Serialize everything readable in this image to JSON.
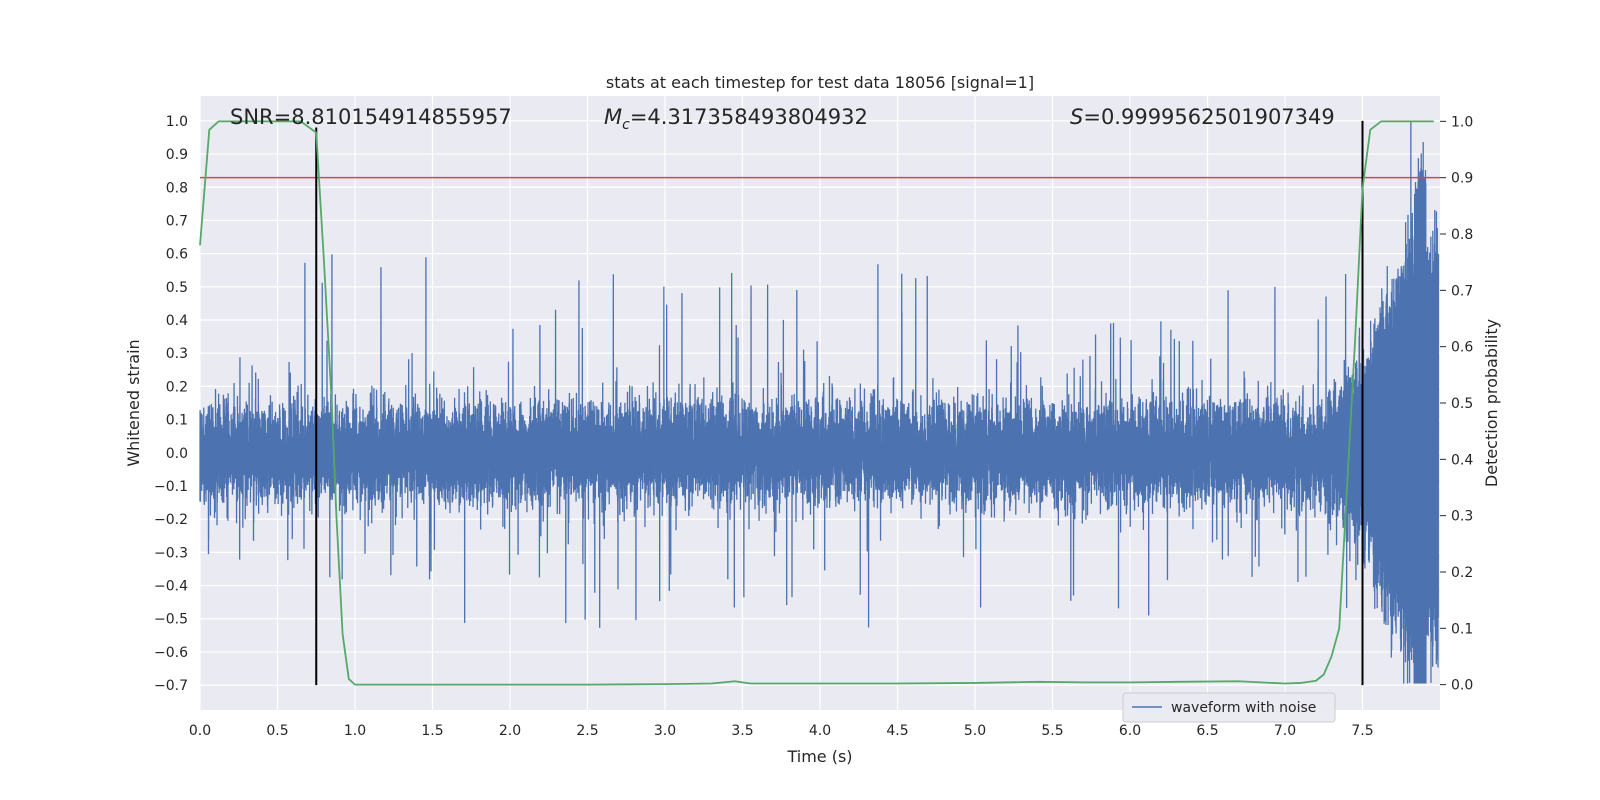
{
  "chart_data": {
    "type": "line",
    "title": "stats at each timestep for test data 18056 [signal=1]",
    "xlabel": "Time (s)",
    "ylabel": "Whitened strain",
    "y2label": "Detection probability",
    "xlim": [
      0.0,
      8.0
    ],
    "ylim": [
      -0.775,
      1.075
    ],
    "y2lim": [
      -0.045,
      1.045
    ],
    "xticks": [
      "0.0",
      "0.5",
      "1.0",
      "1.5",
      "2.0",
      "2.5",
      "3.0",
      "3.5",
      "4.0",
      "4.5",
      "5.0",
      "5.5",
      "6.0",
      "6.5",
      "7.0",
      "7.5"
    ],
    "xtick_values": [
      0.0,
      0.5,
      1.0,
      1.5,
      2.0,
      2.5,
      3.0,
      3.5,
      4.0,
      4.5,
      5.0,
      5.5,
      6.0,
      6.5,
      7.0,
      7.5
    ],
    "yticks": [
      "−0.7",
      "−0.6",
      "−0.5",
      "−0.4",
      "−0.3",
      "−0.2",
      "−0.1",
      "0.0",
      "0.1",
      "0.2",
      "0.3",
      "0.4",
      "0.5",
      "0.6",
      "0.7",
      "0.8",
      "0.9",
      "1.0"
    ],
    "ytick_values": [
      -0.7,
      -0.6,
      -0.5,
      -0.4,
      -0.3,
      -0.2,
      -0.1,
      0.0,
      0.1,
      0.2,
      0.3,
      0.4,
      0.5,
      0.6,
      0.7,
      0.8,
      0.9,
      1.0
    ],
    "y2ticks": [
      "0.0",
      "0.1",
      "0.2",
      "0.3",
      "0.4",
      "0.5",
      "0.6",
      "0.7",
      "0.8",
      "0.9",
      "1.0"
    ],
    "y2tick_values": [
      0.0,
      0.1,
      0.2,
      0.3,
      0.4,
      0.5,
      0.6,
      0.7,
      0.8,
      0.9,
      1.0
    ],
    "annotations": {
      "snr": "SNR=8.810154914855957",
      "mc_symbol": "M",
      "mc_subscript": "c",
      "mc_value": "=4.317358493804932",
      "s_symbol": "S",
      "s_value": "=0.9999562501907349"
    },
    "legend": {
      "label": "waveform with noise",
      "position": "lower-right"
    },
    "series": [
      {
        "name": "waveform with noise",
        "axis": "left",
        "color": "#4c72b0",
        "sample_rate_hz": 2048,
        "duration_s": 7.99,
        "noise_core_amplitude": 0.19,
        "noise_envelope": [
          {
            "x": 0.0,
            "pos": 0.42,
            "neg": -0.36
          },
          {
            "x": 0.9,
            "pos": 0.61,
            "neg": -0.4
          },
          {
            "x": 2.35,
            "pos": 0.55,
            "neg": -0.54
          },
          {
            "x": 3.5,
            "pos": 0.55,
            "neg": -0.49
          },
          {
            "x": 4.1,
            "pos": 0.57,
            "neg": -0.54
          },
          {
            "x": 6.0,
            "pos": 0.4,
            "neg": -0.5
          },
          {
            "x": 7.0,
            "pos": 0.65,
            "neg": -0.42
          }
        ],
        "chirp_peaks": [
          {
            "x": 7.35,
            "pos": 0.55,
            "neg": -0.52
          },
          {
            "x": 7.5,
            "pos": 0.6,
            "neg": -0.55
          },
          {
            "x": 7.6,
            "pos": 0.68,
            "neg": -0.6
          },
          {
            "x": 7.7,
            "pos": 0.72,
            "neg": -0.62
          },
          {
            "x": 7.8,
            "pos": 0.78,
            "neg": -0.68
          },
          {
            "x": 7.87,
            "pos": 1.0,
            "neg": -0.7
          },
          {
            "x": 7.95,
            "pos": 0.6,
            "neg": -0.45
          }
        ]
      },
      {
        "name": "detection probability",
        "axis": "right",
        "color": "#55a868",
        "x": [
          0.0,
          0.06,
          0.12,
          0.3,
          0.5,
          0.65,
          0.75,
          0.8,
          0.85,
          0.88,
          0.92,
          0.96,
          1.0,
          1.5,
          2.0,
          2.5,
          3.0,
          3.3,
          3.45,
          3.55,
          4.0,
          4.5,
          5.0,
          5.4,
          5.7,
          6.0,
          6.3,
          6.7,
          7.0,
          7.1,
          7.2,
          7.25,
          7.3,
          7.35,
          7.4,
          7.45,
          7.5,
          7.55,
          7.62,
          7.7,
          7.8,
          7.96
        ],
        "values": [
          0.78,
          0.985,
          1.0,
          1.0,
          1.0,
          1.0,
          0.98,
          0.75,
          0.5,
          0.3,
          0.09,
          0.01,
          0.0,
          0.0,
          0.0,
          0.0,
          0.001,
          0.002,
          0.006,
          0.002,
          0.002,
          0.002,
          0.003,
          0.005,
          0.004,
          0.004,
          0.005,
          0.006,
          0.002,
          0.003,
          0.007,
          0.018,
          0.05,
          0.1,
          0.35,
          0.6,
          0.88,
          0.985,
          1.0,
          1.0,
          1.0,
          1.0
        ]
      }
    ],
    "threshold": {
      "axis": "right",
      "value": 0.9,
      "color": "#c44e52"
    },
    "vertical_markers": [
      {
        "x": 0.75,
        "ymin": -0.7,
        "ymax": 0.98,
        "color": "#000000"
      },
      {
        "x": 7.5,
        "ymin": -0.7,
        "ymax": 1.0,
        "color": "#000000"
      }
    ]
  }
}
